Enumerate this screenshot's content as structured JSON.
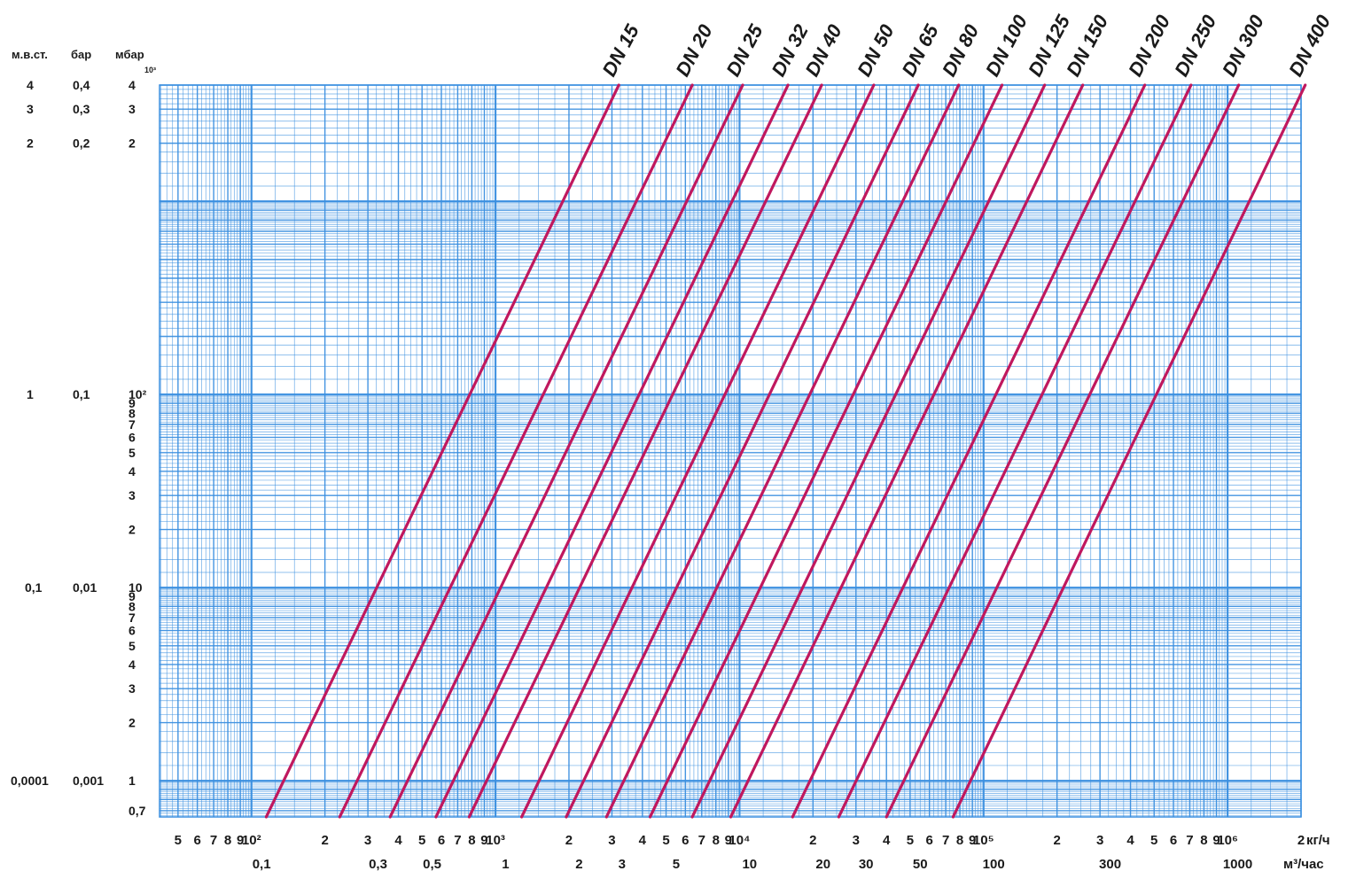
{
  "chart_data": {
    "type": "line",
    "title": "",
    "x_scale": "log",
    "y_scale": "log",
    "grid": true,
    "xlim": [
      42,
      2000000
    ],
    "ylim": [
      0.65,
      4000
    ],
    "colors": {
      "grid": "#3a8fe0",
      "grid_bg": "#ffffff",
      "series": "#c0185e",
      "text": "#1a1a1a"
    },
    "y_headers": {
      "col_mwc": "м.в.ст.",
      "col_bar": "бар",
      "col_mbar": "мбар"
    },
    "y_axis_label": "мбар",
    "y_top_exponent_label": "10³",
    "y_ticks": [
      {
        "value": 4000,
        "mbar": "4",
        "bar": "0,4",
        "mwc": "4"
      },
      {
        "value": 3000,
        "mbar": "3",
        "bar": "0,3",
        "mwc": "3"
      },
      {
        "value": 2000,
        "mbar": "2",
        "bar": "0,2",
        "mwc": "2"
      },
      {
        "value": 1000,
        "mbar": "",
        "bar": "",
        "mwc": ""
      },
      {
        "value": 100,
        "mbar": "10²",
        "bar": "0,1",
        "mwc": "1"
      },
      {
        "value": 90,
        "mbar": "9",
        "bar": "",
        "mwc": ""
      },
      {
        "value": 80,
        "mbar": "8",
        "bar": "",
        "mwc": ""
      },
      {
        "value": 70,
        "mbar": "7",
        "bar": "",
        "mwc": ""
      },
      {
        "value": 60,
        "mbar": "6",
        "bar": "",
        "mwc": ""
      },
      {
        "value": 50,
        "mbar": "5",
        "bar": "",
        "mwc": ""
      },
      {
        "value": 40,
        "mbar": "4",
        "bar": "",
        "mwc": ""
      },
      {
        "value": 30,
        "mbar": "3",
        "bar": "",
        "mwc": ""
      },
      {
        "value": 20,
        "mbar": "2",
        "bar": "",
        "mwc": ""
      },
      {
        "value": 10,
        "mbar": "10",
        "bar": "0,01",
        "mwc": "0,1"
      },
      {
        "value": 9,
        "mbar": "9",
        "bar": "",
        "mwc": ""
      },
      {
        "value": 8,
        "mbar": "8",
        "bar": "",
        "mwc": ""
      },
      {
        "value": 7,
        "mbar": "7",
        "bar": "",
        "mwc": ""
      },
      {
        "value": 6,
        "mbar": "6",
        "bar": "",
        "mwc": ""
      },
      {
        "value": 5,
        "mbar": "5",
        "bar": "",
        "mwc": ""
      },
      {
        "value": 4,
        "mbar": "4",
        "bar": "",
        "mwc": ""
      },
      {
        "value": 3,
        "mbar": "3",
        "bar": "",
        "mwc": ""
      },
      {
        "value": 2,
        "mbar": "2",
        "bar": "",
        "mwc": ""
      },
      {
        "value": 1,
        "mbar": "1",
        "bar": "0,001",
        "mwc": "0,0001"
      },
      {
        "value": 0.7,
        "mbar": "0,7",
        "bar": "",
        "mwc": ""
      }
    ],
    "x_ticks_kg": [
      {
        "value": 50,
        "label": "5"
      },
      {
        "value": 60,
        "label": "6"
      },
      {
        "value": 70,
        "label": "7"
      },
      {
        "value": 80,
        "label": "8"
      },
      {
        "value": 90,
        "label": "9"
      },
      {
        "value": 100,
        "label": "10²"
      },
      {
        "value": 200,
        "label": "2"
      },
      {
        "value": 300,
        "label": "3"
      },
      {
        "value": 400,
        "label": "4"
      },
      {
        "value": 500,
        "label": "5"
      },
      {
        "value": 600,
        "label": "6"
      },
      {
        "value": 700,
        "label": "7"
      },
      {
        "value": 800,
        "label": "8"
      },
      {
        "value": 900,
        "label": "9"
      },
      {
        "value": 1000,
        "label": "10³"
      },
      {
        "value": 2000,
        "label": "2"
      },
      {
        "value": 3000,
        "label": "3"
      },
      {
        "value": 4000,
        "label": "4"
      },
      {
        "value": 5000,
        "label": "5"
      },
      {
        "value": 6000,
        "label": "6"
      },
      {
        "value": 7000,
        "label": "7"
      },
      {
        "value": 8000,
        "label": "8"
      },
      {
        "value": 9000,
        "label": "9"
      },
      {
        "value": 10000,
        "label": "10⁴"
      },
      {
        "value": 20000,
        "label": "2"
      },
      {
        "value": 30000,
        "label": "3"
      },
      {
        "value": 40000,
        "label": "4"
      },
      {
        "value": 50000,
        "label": "5"
      },
      {
        "value": 60000,
        "label": "6"
      },
      {
        "value": 70000,
        "label": "7"
      },
      {
        "value": 80000,
        "label": "8"
      },
      {
        "value": 90000,
        "label": "9"
      },
      {
        "value": 100000,
        "label": "10⁵"
      },
      {
        "value": 200000,
        "label": "2"
      },
      {
        "value": 300000,
        "label": "3"
      },
      {
        "value": 400000,
        "label": "4"
      },
      {
        "value": 500000,
        "label": "5"
      },
      {
        "value": 600000,
        "label": "6"
      },
      {
        "value": 700000,
        "label": "7"
      },
      {
        "value": 800000,
        "label": "8"
      },
      {
        "value": 900000,
        "label": "9"
      },
      {
        "value": 1000000,
        "label": "10⁶"
      },
      {
        "value": 2000000,
        "label": "2"
      }
    ],
    "x_unit_kg": "кг/ч",
    "x_ticks_m3": [
      {
        "value": 110,
        "label": "0,1"
      },
      {
        "value": 330,
        "label": "0,3"
      },
      {
        "value": 550,
        "label": "0,5"
      },
      {
        "value": 1100,
        "label": "1"
      },
      {
        "value": 2200,
        "label": "2"
      },
      {
        "value": 3300,
        "label": "3"
      },
      {
        "value": 5500,
        "label": "5"
      },
      {
        "value": 11000,
        "label": "10"
      },
      {
        "value": 22000,
        "label": "20"
      },
      {
        "value": 33000,
        "label": "30"
      },
      {
        "value": 55000,
        "label": "50"
      },
      {
        "value": 110000,
        "label": "100"
      },
      {
        "value": 330000,
        "label": "300"
      },
      {
        "value": 1100000,
        "label": "1000"
      }
    ],
    "x_unit_m3": "м³/час",
    "series": [
      {
        "name": "DN 15",
        "x": [
          115,
          3200
        ],
        "y": [
          0.65,
          4000
        ]
      },
      {
        "name": "DN 20",
        "x": [
          230,
          6400
        ],
        "y": [
          0.65,
          4000
        ]
      },
      {
        "name": "DN 25",
        "x": [
          370,
          10300
        ],
        "y": [
          0.65,
          4000
        ]
      },
      {
        "name": "DN 32",
        "x": [
          570,
          15800
        ],
        "y": [
          0.65,
          4000
        ]
      },
      {
        "name": "DN 40",
        "x": [
          780,
          21700
        ],
        "y": [
          0.65,
          4000
        ]
      },
      {
        "name": "DN 50",
        "x": [
          1280,
          35500
        ],
        "y": [
          0.65,
          4000
        ]
      },
      {
        "name": "DN 65",
        "x": [
          1950,
          54000
        ],
        "y": [
          0.65,
          4000
        ]
      },
      {
        "name": "DN 80",
        "x": [
          2850,
          79000
        ],
        "y": [
          0.65,
          4000
        ]
      },
      {
        "name": "DN 100",
        "x": [
          4300,
          119000
        ],
        "y": [
          0.65,
          4000
        ]
      },
      {
        "name": "DN 125",
        "x": [
          6400,
          178000
        ],
        "y": [
          0.65,
          4000
        ]
      },
      {
        "name": "DN 150",
        "x": [
          9200,
          255000
        ],
        "y": [
          0.65,
          4000
        ]
      },
      {
        "name": "DN 200",
        "x": [
          16500,
          458000
        ],
        "y": [
          0.65,
          4000
        ]
      },
      {
        "name": "DN 250",
        "x": [
          25500,
          708000
        ],
        "y": [
          0.65,
          4000
        ]
      },
      {
        "name": "DN 300",
        "x": [
          40000,
          1110000
        ],
        "y": [
          0.65,
          4000
        ]
      },
      {
        "name": "DN 400",
        "x": [
          75000,
          2080000
        ],
        "y": [
          0.65,
          4000
        ]
      }
    ]
  }
}
